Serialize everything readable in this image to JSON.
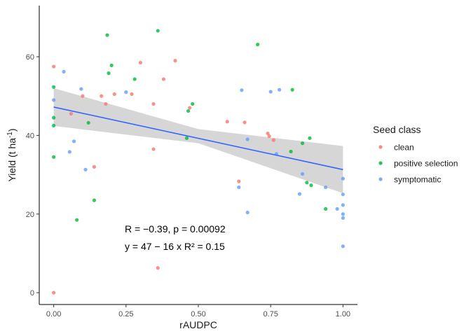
{
  "chart_data": {
    "type": "scatter",
    "xlabel": "rAUDPC",
    "ylabel": "Yield (t ha-1)",
    "xlim": [
      -0.05,
      1.05
    ],
    "ylim": [
      -3,
      73
    ],
    "x_ticks": [
      0.0,
      0.25,
      0.5,
      0.75,
      1.0
    ],
    "x_tick_labels": [
      "0.00",
      "0.25",
      "0.50",
      "0.75",
      "1.00"
    ],
    "y_ticks": [
      0,
      20,
      40,
      60
    ],
    "y_tick_labels": [
      "0",
      "20",
      "40",
      "60"
    ],
    "grid": false,
    "legend": {
      "title": "Seed class",
      "placement": "right",
      "entries": [
        "clean",
        "positive selection",
        "symptomatic"
      ]
    },
    "series": [
      {
        "name": "clean",
        "color": "#F8766D",
        "points": [
          [
            0.0,
            57.5
          ],
          [
            0.0,
            0.0
          ],
          [
            0.06,
            45.5
          ],
          [
            0.1,
            50.0
          ],
          [
            0.14,
            32.0
          ],
          [
            0.165,
            50.0
          ],
          [
            0.18,
            48.0
          ],
          [
            0.21,
            50.5
          ],
          [
            0.27,
            50.5
          ],
          [
            0.3,
            58.5
          ],
          [
            0.345,
            48.0
          ],
          [
            0.345,
            36.5
          ],
          [
            0.36,
            6.3
          ],
          [
            0.38,
            54.3
          ],
          [
            0.42,
            59.0
          ],
          [
            0.47,
            47.0
          ],
          [
            0.6,
            43.5
          ],
          [
            0.64,
            28.3
          ],
          [
            0.66,
            43.3
          ],
          [
            0.74,
            40.5
          ],
          [
            0.745,
            39.8
          ],
          [
            0.76,
            38.8
          ]
        ]
      },
      {
        "name": "positive selection",
        "color": "#00BA38",
        "points": [
          [
            0.0,
            52.3
          ],
          [
            0.0,
            44.5
          ],
          [
            0.0,
            42.5
          ],
          [
            0.0,
            34.5
          ],
          [
            0.08,
            18.5
          ],
          [
            0.12,
            43.2
          ],
          [
            0.14,
            23.5
          ],
          [
            0.185,
            65.5
          ],
          [
            0.19,
            55.8
          ],
          [
            0.2,
            57.8
          ],
          [
            0.28,
            54.3
          ],
          [
            0.36,
            66.6
          ],
          [
            0.46,
            39.3
          ],
          [
            0.465,
            46.2
          ],
          [
            0.48,
            48.0
          ],
          [
            0.705,
            63.1
          ],
          [
            0.82,
            35.9
          ],
          [
            0.825,
            51.6
          ],
          [
            0.86,
            38.0
          ],
          [
            0.875,
            28.0
          ],
          [
            0.885,
            39.3
          ],
          [
            0.89,
            27.3
          ],
          [
            0.94,
            21.3
          ]
        ]
      },
      {
        "name": "symptomatic",
        "color": "#619CFF",
        "points": [
          [
            0.0,
            49.0
          ],
          [
            0.035,
            56.2
          ],
          [
            0.055,
            35.8
          ],
          [
            0.07,
            38.5
          ],
          [
            0.095,
            51.8
          ],
          [
            0.11,
            31.3
          ],
          [
            0.25,
            51.0
          ],
          [
            0.64,
            26.8
          ],
          [
            0.65,
            51.5
          ],
          [
            0.67,
            39.0
          ],
          [
            0.67,
            20.4
          ],
          [
            0.75,
            51.1
          ],
          [
            0.77,
            35.3
          ],
          [
            0.78,
            51.6
          ],
          [
            0.85,
            25.1
          ],
          [
            0.86,
            30.2
          ],
          [
            0.94,
            26.8
          ],
          [
            0.98,
            21.3
          ],
          [
            1.0,
            29.0
          ],
          [
            1.0,
            25.0
          ],
          [
            1.0,
            22.3
          ],
          [
            1.0,
            20.0
          ],
          [
            1.0,
            19.0
          ],
          [
            1.0,
            11.8
          ]
        ]
      }
    ],
    "regression": {
      "color": "#3366FF",
      "ci_color": "#D4D4D4",
      "line": [
        [
          0.0,
          47.2
        ],
        [
          1.0,
          31.3
        ]
      ],
      "ci_upper": [
        [
          0.0,
          52.0
        ],
        [
          0.5,
          41.6
        ],
        [
          1.0,
          37.3
        ]
      ],
      "ci_lower": [
        [
          0.0,
          42.4
        ],
        [
          0.5,
          38.0
        ],
        [
          1.0,
          25.3
        ]
      ]
    },
    "annotations": {
      "line1": "R = −0.39, p = 0.00092",
      "line2": "y = 47 − 16 x   R² = 0.15"
    }
  }
}
